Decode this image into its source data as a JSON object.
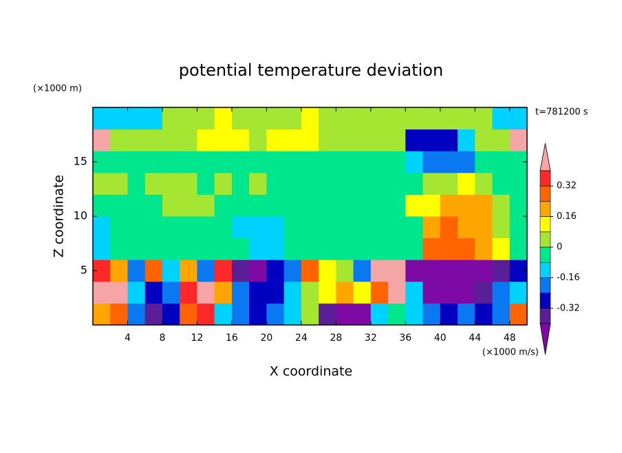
{
  "chart_data": {
    "type": "contour",
    "title": "potential temperature deviation",
    "xlabel": "X coordinate",
    "ylabel": "Z coordinate",
    "x_unit": "(×1000 m/s)",
    "y_unit": "(×1000 m)",
    "annotation": "t=781200 s",
    "xlim": [
      0,
      50
    ],
    "ylim": [
      0,
      20
    ],
    "xticks": [
      4,
      8,
      12,
      16,
      20,
      24,
      28,
      32,
      36,
      40,
      44,
      48
    ],
    "yticks": [
      5,
      10,
      15
    ],
    "x": [
      1,
      3,
      5,
      7,
      9,
      11,
      13,
      15,
      17,
      19,
      21,
      23,
      25,
      27,
      29,
      31,
      33,
      35,
      37,
      39,
      41,
      43,
      45,
      47,
      49
    ],
    "z": [
      1,
      3,
      5,
      7,
      9,
      11,
      13,
      15,
      17,
      19
    ],
    "values": [
      [
        0.2,
        0.28,
        -0.2,
        -0.36,
        -0.28,
        0.28,
        0.36,
        -0.12,
        -0.2,
        -0.28,
        -0.2,
        -0.12,
        0.04,
        -0.36,
        -0.45,
        -0.45,
        -0.12,
        -0.04,
        -0.12,
        -0.2,
        -0.28,
        -0.2,
        -0.28,
        -0.2,
        0.28
      ],
      [
        0.45,
        0.45,
        -0.12,
        -0.28,
        -0.2,
        0.36,
        0.45,
        0.2,
        -0.2,
        -0.28,
        -0.28,
        -0.12,
        0.04,
        0.12,
        0.2,
        0.12,
        0.28,
        0.45,
        -0.12,
        -0.45,
        -0.45,
        -0.45,
        -0.36,
        -0.2,
        -0.12
      ],
      [
        0.36,
        0.2,
        -0.2,
        0.28,
        -0.12,
        0.2,
        -0.2,
        0.36,
        -0.36,
        -0.45,
        -0.28,
        -0.2,
        0.28,
        0.12,
        0.04,
        -0.2,
        0.45,
        0.45,
        -0.45,
        -0.45,
        -0.45,
        -0.45,
        -0.45,
        -0.36,
        -0.28
      ],
      [
        -0.12,
        -0.04,
        -0.04,
        -0.04,
        -0.04,
        -0.04,
        -0.04,
        -0.04,
        -0.04,
        -0.12,
        -0.12,
        -0.04,
        -0.04,
        -0.04,
        -0.04,
        -0.04,
        -0.04,
        -0.04,
        -0.04,
        0.28,
        0.28,
        0.28,
        0.2,
        0.12,
        -0.04
      ],
      [
        -0.12,
        -0.04,
        -0.04,
        -0.04,
        -0.04,
        -0.04,
        -0.04,
        -0.04,
        -0.12,
        -0.12,
        -0.12,
        -0.04,
        -0.04,
        -0.04,
        -0.04,
        -0.04,
        -0.04,
        -0.04,
        -0.04,
        0.2,
        0.28,
        0.2,
        0.2,
        0.04,
        -0.04
      ],
      [
        -0.04,
        -0.04,
        -0.04,
        -0.04,
        0.04,
        0.04,
        0.04,
        -0.04,
        -0.04,
        -0.04,
        -0.04,
        -0.04,
        -0.04,
        -0.04,
        -0.04,
        -0.04,
        -0.04,
        -0.04,
        0.12,
        0.12,
        0.2,
        0.2,
        0.2,
        0.04,
        -0.04
      ],
      [
        0.04,
        0.04,
        -0.04,
        0.04,
        0.04,
        0.04,
        -0.04,
        0.04,
        -0.04,
        0.04,
        -0.04,
        -0.04,
        -0.04,
        -0.04,
        -0.04,
        -0.04,
        -0.04,
        -0.04,
        -0.04,
        0.04,
        0.04,
        0.12,
        0.04,
        -0.04,
        -0.04
      ],
      [
        -0.04,
        -0.04,
        -0.04,
        -0.04,
        -0.04,
        -0.04,
        -0.04,
        -0.04,
        -0.04,
        -0.04,
        -0.04,
        -0.04,
        -0.04,
        -0.04,
        -0.04,
        -0.04,
        -0.04,
        -0.04,
        -0.12,
        -0.2,
        -0.2,
        -0.2,
        -0.04,
        -0.04,
        -0.04
      ],
      [
        0.45,
        0.04,
        0.04,
        0.04,
        0.04,
        0.04,
        0.12,
        0.12,
        0.12,
        0.04,
        0.12,
        0.12,
        0.12,
        0.04,
        0.04,
        0.04,
        0.04,
        0.04,
        -0.28,
        -0.28,
        -0.28,
        -0.12,
        0.04,
        0.04,
        0.45
      ],
      [
        -0.12,
        -0.12,
        -0.12,
        -0.12,
        0.04,
        0.04,
        0.04,
        0.12,
        0.04,
        0.04,
        0.04,
        0.04,
        0.12,
        0.04,
        0.04,
        0.04,
        0.04,
        0.04,
        0.04,
        0.04,
        0.04,
        0.04,
        0.04,
        -0.12,
        -0.12
      ]
    ],
    "colorbar": {
      "levels": [
        -0.4,
        -0.32,
        -0.24,
        -0.16,
        -0.08,
        0,
        0.08,
        0.16,
        0.24,
        0.32,
        0.4
      ],
      "colors": [
        "#5a1e96",
        "#0000c0",
        "#0a78f0",
        "#00d2ff",
        "#00e68c",
        "#a5e632",
        "#ffff00",
        "#ffa500",
        "#ff6400",
        "#ff2828"
      ],
      "under_color": "#7d0aa5",
      "over_color": "#f5a5a5",
      "ticks": [
        -0.32,
        -0.16,
        0,
        0.16,
        0.32
      ]
    }
  }
}
